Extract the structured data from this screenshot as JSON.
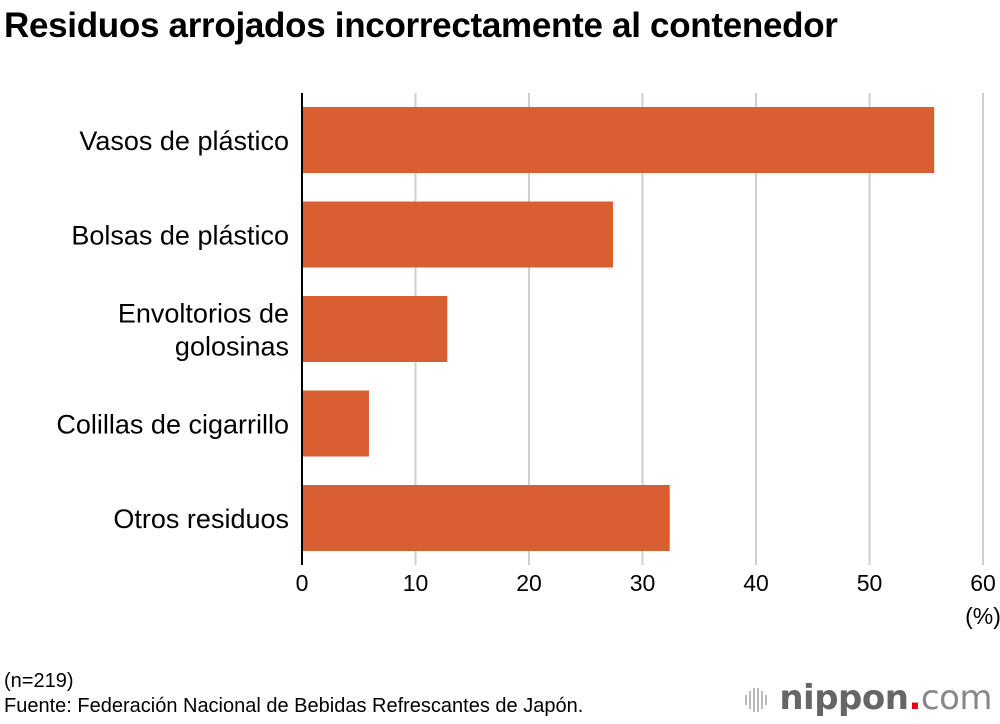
{
  "chart_data": {
    "type": "bar",
    "orientation": "horizontal",
    "title": "Residuos arrojados incorrectamente al contenedor",
    "categories": [
      [
        "Vasos de plástico"
      ],
      [
        "Bolsas de plástico"
      ],
      [
        "Envoltorios de",
        "golosinas"
      ],
      [
        "Colillas de cigarrillo"
      ],
      [
        "Otros residuos"
      ]
    ],
    "values": [
      55.7,
      27.4,
      12.8,
      5.9,
      32.4
    ],
    "xlim": [
      0,
      60
    ],
    "xticks": [
      "0",
      "10",
      "20",
      "30",
      "40",
      "50",
      "60"
    ],
    "xunit": "(%)",
    "grid": true,
    "bar_color": "#d95f33"
  },
  "notes": {
    "n": "(n=219)",
    "source": "Fuente: Federación Nacional de Bebidas Refrescantes de Japón."
  },
  "logo": {
    "main": "nippon",
    "dot": ".",
    "suffix": "com",
    "accent": "#e60012"
  }
}
